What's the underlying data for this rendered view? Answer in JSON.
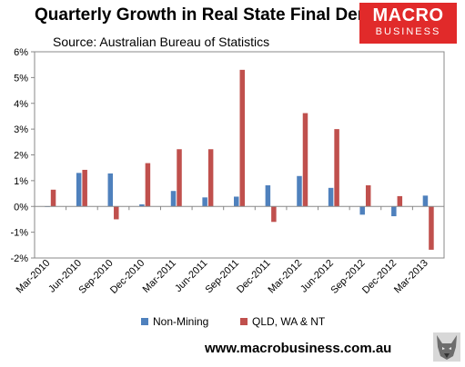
{
  "title": "Quarterly Growth in Real State Final Demand",
  "subtitle": "Source: Australian Bureau of Statistics",
  "logo": {
    "line1": "MACRO",
    "line2": "BUSINESS",
    "color": "#e12a2a"
  },
  "website": "www.macrobusiness.com.au",
  "watermark_icon": "wolf-head-icon",
  "chart_data": {
    "type": "bar",
    "categories": [
      "Mar-2010",
      "Jun-2010",
      "Sep-2010",
      "Dec-2010",
      "Mar-2011",
      "Jun-2011",
      "Sep-2011",
      "Dec-2011",
      "Mar-2012",
      "Jun-2012",
      "Sep-2012",
      "Dec-2012",
      "Mar-2013"
    ],
    "series": [
      {
        "name": "Non-Mining",
        "color": "#4f81bd",
        "values": [
          0.0,
          1.3,
          1.28,
          0.08,
          0.6,
          0.35,
          0.38,
          0.82,
          1.18,
          0.72,
          -0.32,
          -0.38,
          0.42
        ]
      },
      {
        "name": "QLD, WA & NT",
        "color": "#c0504d",
        "values": [
          0.65,
          1.42,
          -0.5,
          1.68,
          2.22,
          2.22,
          5.3,
          -0.6,
          3.62,
          3.0,
          0.82,
          0.4,
          -1.68
        ]
      }
    ],
    "ylim": [
      -2,
      6
    ],
    "yticks": [
      "-2%",
      "-1%",
      "0%",
      "1%",
      "2%",
      "3%",
      "4%",
      "5%",
      "6%"
    ],
    "grid": false,
    "legend": "bottom"
  }
}
